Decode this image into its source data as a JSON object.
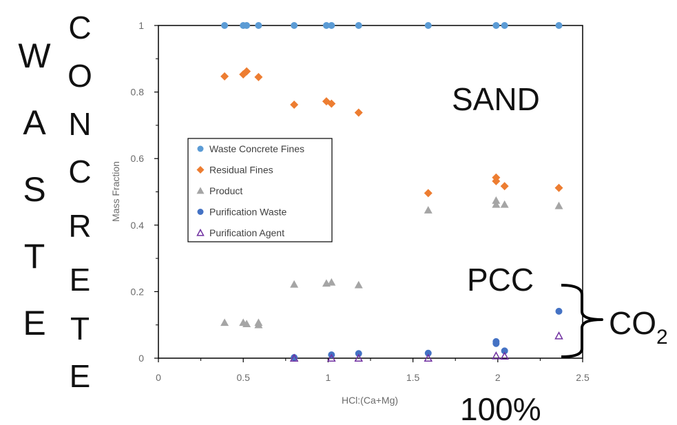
{
  "side_labels": {
    "waste": [
      "W",
      "A",
      "S",
      "T",
      "E"
    ],
    "concrete": [
      "C",
      "O",
      "N",
      "C",
      "R",
      "E",
      "T",
      "E"
    ]
  },
  "annotations": {
    "sand": "SAND",
    "pcc": "PCC",
    "co2_main": "CO",
    "co2_sub": "2",
    "percent": "100%"
  },
  "colors": {
    "waste_concrete_fines": "#5b9bd5",
    "residual_fines": "#ed7d31",
    "product": "#a5a5a5",
    "purification_waste": "#4472c4",
    "purification_agent": "#7030a0"
  },
  "chart_data": {
    "type": "scatter",
    "xlabel": "HCl:(Ca+Mg)",
    "ylabel": "Mass Fraction",
    "xlim": [
      0,
      2.5
    ],
    "ylim": [
      0,
      1
    ],
    "xticks": [
      "0",
      "0.5",
      "1",
      "1.5",
      "2",
      "2.5"
    ],
    "yticks": [
      "0",
      "0.2",
      "0.4",
      "0.6",
      "0.8",
      "1"
    ],
    "grid": false,
    "legend_position": "left-middle",
    "series": [
      {
        "name": "Waste Concrete Fines",
        "marker": "circle",
        "color": "#5b9bd5",
        "points": [
          [
            0.39,
            1
          ],
          [
            0.5,
            1
          ],
          [
            0.52,
            1
          ],
          [
            0.59,
            1
          ],
          [
            0.8,
            1
          ],
          [
            0.99,
            1
          ],
          [
            1.02,
            1
          ],
          [
            1.18,
            1
          ],
          [
            1.59,
            1
          ],
          [
            1.99,
            1
          ],
          [
            2.04,
            1
          ],
          [
            2.36,
            1
          ]
        ]
      },
      {
        "name": "Residual Fines",
        "marker": "diamond",
        "color": "#ed7d31",
        "points": [
          [
            0.39,
            0.847
          ],
          [
            0.5,
            0.853
          ],
          [
            0.52,
            0.862
          ],
          [
            0.59,
            0.845
          ],
          [
            0.8,
            0.762
          ],
          [
            0.99,
            0.772
          ],
          [
            1.02,
            0.765
          ],
          [
            1.18,
            0.738
          ],
          [
            1.59,
            0.496
          ],
          [
            1.99,
            0.543
          ],
          [
            1.99,
            0.532
          ],
          [
            2.04,
            0.517
          ],
          [
            2.36,
            0.512
          ]
        ]
      },
      {
        "name": "Product",
        "marker": "triangle",
        "color": "#a5a5a5",
        "points": [
          [
            0.39,
            0.107
          ],
          [
            0.5,
            0.107
          ],
          [
            0.52,
            0.103
          ],
          [
            0.59,
            0.107
          ],
          [
            0.59,
            0.1
          ],
          [
            0.8,
            0.222
          ],
          [
            0.99,
            0.225
          ],
          [
            1.02,
            0.228
          ],
          [
            1.18,
            0.22
          ],
          [
            1.59,
            0.445
          ],
          [
            1.99,
            0.474
          ],
          [
            1.99,
            0.462
          ],
          [
            2.04,
            0.462
          ],
          [
            2.36,
            0.458
          ]
        ]
      },
      {
        "name": "Purification Waste",
        "marker": "circle",
        "color": "#4472c4",
        "points": [
          [
            0.8,
            0.002
          ],
          [
            1.02,
            0.01
          ],
          [
            1.18,
            0.014
          ],
          [
            1.59,
            0.015
          ],
          [
            1.99,
            0.05
          ],
          [
            1.99,
            0.044
          ],
          [
            2.04,
            0.022
          ],
          [
            2.36,
            0.141
          ]
        ]
      },
      {
        "name": "Purification Agent",
        "marker": "triangle-open",
        "color": "#7030a0",
        "points": [
          [
            0.8,
            0
          ],
          [
            1.02,
            0
          ],
          [
            1.18,
            0
          ],
          [
            1.59,
            0
          ],
          [
            1.99,
            0.007
          ],
          [
            2.04,
            0.006
          ],
          [
            2.36,
            0.067
          ]
        ]
      }
    ]
  }
}
